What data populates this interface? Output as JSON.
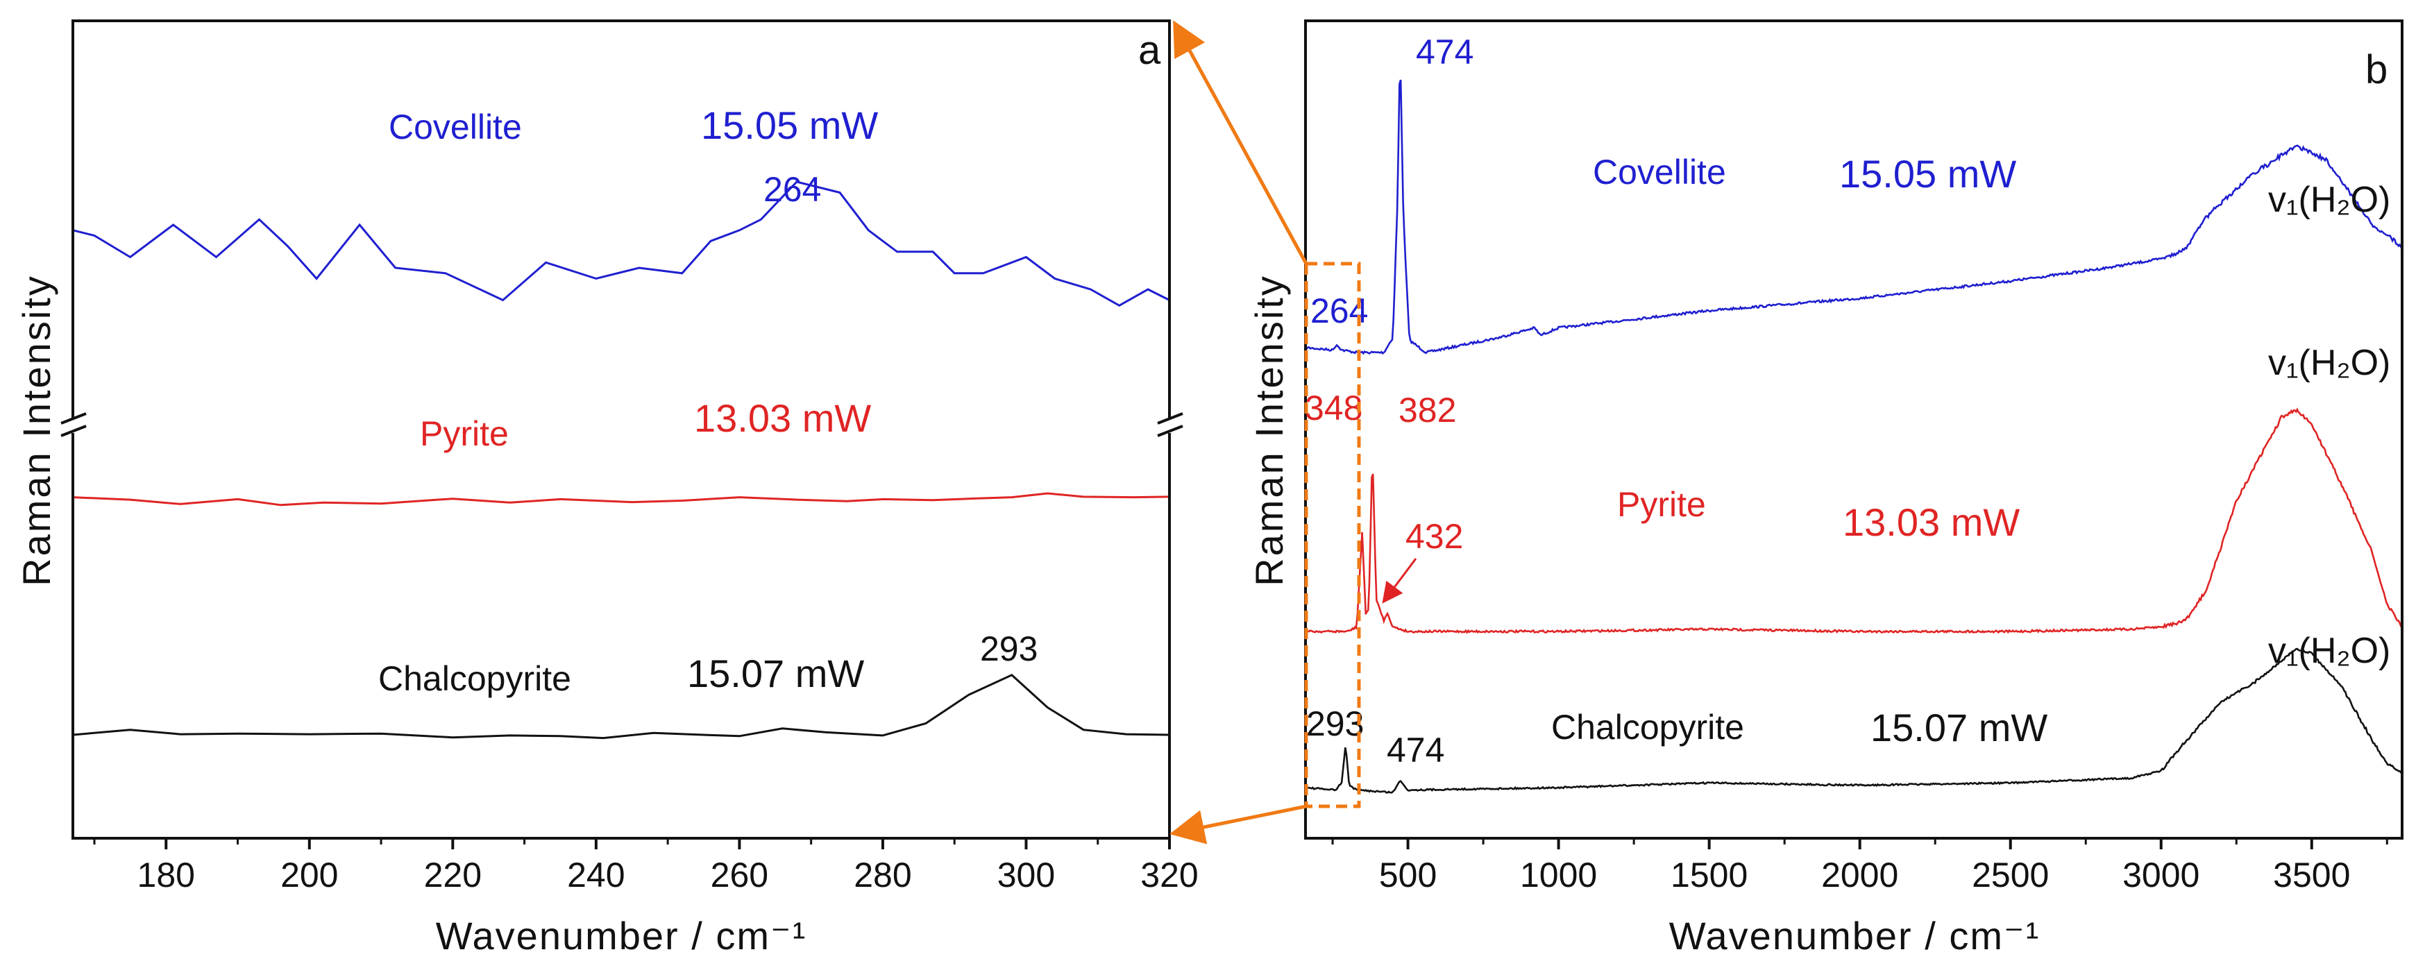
{
  "colors": {
    "blue": "#1f1fd0",
    "red": "#e02424",
    "black": "#111111",
    "orange": "#f07a14"
  },
  "chart_data": [
    {
      "panel": "a",
      "type": "line",
      "panel_label": "a",
      "xlabel": "Wavenumber / cm⁻¹",
      "ylabel": "Raman Intensity",
      "xlim": [
        167,
        320
      ],
      "xticks": [
        180,
        200,
        220,
        240,
        260,
        280,
        300,
        320
      ],
      "axis_break": "y-axis break between Covellite and Pyrite traces",
      "series": [
        {
          "name": "Covellite",
          "power": "15.05 mW",
          "color": "blue",
          "x": [
            167,
            170,
            175,
            181,
            187,
            193,
            197,
            201,
            207,
            212,
            219,
            227,
            233,
            240,
            246,
            252,
            256,
            260,
            263,
            268,
            274,
            278,
            282,
            287,
            290,
            294,
            300,
            304,
            309,
            313,
            317,
            320
          ],
          "y": [
            83,
            82,
            78,
            84,
            78,
            85,
            80,
            74,
            84,
            76,
            75,
            70,
            77,
            74,
            76,
            75,
            81,
            83,
            85,
            92,
            90,
            83,
            79,
            79,
            75,
            75,
            78,
            74,
            72,
            69,
            72,
            70
          ]
        },
        {
          "name": "Pyrite",
          "power": "13.03 mW",
          "color": "red",
          "x": [
            167,
            175,
            182,
            190,
            196,
            202,
            210,
            220,
            228,
            235,
            245,
            252,
            260,
            268,
            275,
            280,
            287,
            292,
            298,
            303,
            308,
            315,
            320
          ],
          "y": [
            46.2,
            45.7,
            44.8,
            45.8,
            44.6,
            45.1,
            44.9,
            45.9,
            45.1,
            45.8,
            45.2,
            45.5,
            46.2,
            45.7,
            45.4,
            45.8,
            45.6,
            45.9,
            46.2,
            47.0,
            46.3,
            46.2,
            46.3
          ]
        },
        {
          "name": "Chalcopyrite",
          "power": "15.07 mW",
          "color": "black",
          "x": [
            167,
            175,
            182,
            190,
            200,
            210,
            220,
            228,
            235,
            241,
            248,
            255,
            260,
            266,
            272,
            280,
            286,
            292,
            298,
            303,
            308,
            314,
            320
          ],
          "y": [
            11.2,
            12.0,
            11.3,
            11.4,
            11.3,
            11.4,
            10.8,
            11.1,
            11.0,
            10.7,
            11.5,
            11.2,
            11.0,
            12.2,
            11.6,
            11.1,
            13.0,
            17.5,
            20.6,
            15.5,
            12.0,
            11.3,
            11.2
          ]
        }
      ],
      "annotations": [
        {
          "text": "264",
          "x": 264,
          "series": "Covellite"
        },
        {
          "text": "293",
          "x": 293,
          "series": "Chalcopyrite"
        }
      ]
    },
    {
      "panel": "b",
      "type": "line",
      "panel_label": "b",
      "xlabel": "Wavenumber / cm⁻¹",
      "ylabel": "Raman Intensity",
      "xlim": [
        160,
        3800
      ],
      "xticks": [
        500,
        1000,
        1500,
        2000,
        2500,
        3000,
        3500
      ],
      "series": [
        {
          "name": "Covellite",
          "power": "15.05 mW",
          "color": "blue",
          "peaks": [
            264,
            474
          ],
          "band_label": "v₁(H₂O)",
          "x": [
            160,
            250,
            264,
            280,
            330,
            420,
            450,
            465,
            474,
            485,
            505,
            560,
            800,
            920,
            940,
            1000,
            1500,
            2000,
            2500,
            2800,
            3000,
            3080,
            3150,
            3300,
            3450,
            3550,
            3700,
            3800
          ],
          "y": [
            2,
            1,
            3,
            1,
            0,
            0,
            6,
            60,
            123,
            55,
            5,
            0,
            6,
            10,
            7,
            10,
            17,
            22,
            29,
            34,
            38,
            42,
            55,
            72,
            84,
            78,
            52,
            43
          ]
        },
        {
          "name": "Pyrite",
          "power": "13.03 mW",
          "color": "red",
          "peaks": [
            348,
            382,
            432
          ],
          "band_label": "v₁(H₂O)",
          "x": [
            160,
            300,
            330,
            348,
            360,
            370,
            382,
            395,
            420,
            432,
            450,
            500,
            1000,
            1500,
            2000,
            2500,
            2900,
            3000,
            3080,
            3150,
            3250,
            3400,
            3450,
            3500,
            3600,
            3700,
            3750,
            3800
          ],
          "y": [
            0,
            0,
            2,
            44,
            8,
            10,
            80,
            14,
            5,
            8,
            2,
            0,
            0,
            1,
            0,
            0,
            1,
            2,
            5,
            18,
            58,
            95,
            98,
            92,
            65,
            35,
            12,
            2
          ]
        },
        {
          "name": "Chalcopyrite",
          "power": "15.07 mW",
          "color": "black",
          "peaks": [
            293,
            474
          ],
          "band_label": "v₁(H₂O)",
          "x": [
            160,
            260,
            280,
            293,
            305,
            330,
            450,
            474,
            500,
            1000,
            1500,
            2000,
            2500,
            2900,
            3000,
            3100,
            3200,
            3300,
            3400,
            3450,
            3500,
            3600,
            3700,
            3750,
            3800
          ],
          "y": [
            2,
            1,
            4,
            20,
            3,
            1,
            0,
            5,
            1,
            2,
            4,
            3,
            4,
            6,
            9,
            24,
            38,
            45,
            55,
            60,
            58,
            44,
            22,
            12,
            8
          ]
        }
      ],
      "annotations": [
        {
          "text": "474",
          "series": "Covellite"
        },
        {
          "text": "264",
          "series": "Covellite"
        },
        {
          "text": "348",
          "series": "Pyrite"
        },
        {
          "text": "382",
          "series": "Pyrite"
        },
        {
          "text": "432",
          "series": "Pyrite"
        },
        {
          "text": "293",
          "series": "Chalcopyrite"
        },
        {
          "text": "474",
          "series": "Chalcopyrite"
        }
      ],
      "zoom_region": {
        "x_range": [
          167,
          320
        ],
        "links_to_panel": "a"
      }
    }
  ]
}
